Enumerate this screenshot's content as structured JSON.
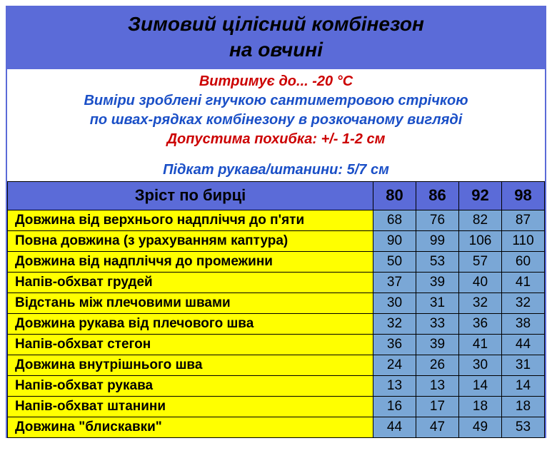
{
  "title": {
    "line1": "Зимовий  цілісний  комбінезон",
    "line2": "на  овчині"
  },
  "info": {
    "temp": {
      "text": "Витримує до... -20 °C",
      "color": "#cc0000"
    },
    "note1": {
      "text": "Виміри зроблені гнучкою сантиметровою стрічкою",
      "color": "#1a4fc7"
    },
    "note2": {
      "text": "по швах-рядках комбінезону в розкочаному вигляді",
      "color": "#1a4fc7"
    },
    "tol": {
      "text": "Допустима похибка: +/- 1-2 см",
      "color": "#cc0000"
    },
    "cuff": {
      "text": "Підкат рукава/штанини: 5/7 см",
      "color": "#1a4fc7"
    }
  },
  "colors": {
    "header_bg": "#5b6bd8",
    "label_bg": "#ffff00",
    "value_bg": "#7aa7d6",
    "border": "#000000"
  },
  "table": {
    "header_label": "Зріст по бирці",
    "sizes": [
      "80",
      "86",
      "92",
      "98"
    ],
    "rows": [
      {
        "label": "Довжина від верхнього надпліччя до п'яти",
        "values": [
          "68",
          "76",
          "82",
          "87"
        ]
      },
      {
        "label": "Повна довжина (з урахуванням каптура)",
        "values": [
          "90",
          "99",
          "106",
          "110"
        ]
      },
      {
        "label": "Довжина від надпліччя до промежини",
        "values": [
          "50",
          "53",
          "57",
          "60"
        ]
      },
      {
        "label": "Напів-обхват грудей",
        "values": [
          "37",
          "39",
          "40",
          "41"
        ]
      },
      {
        "label": "Відстань між плечовими швами",
        "values": [
          "30",
          "31",
          "32",
          "32"
        ]
      },
      {
        "label": "Довжина рукава від плечового шва",
        "values": [
          "32",
          "33",
          "36",
          "38"
        ]
      },
      {
        "label": "Напів-обхват стегон",
        "values": [
          "36",
          "39",
          "41",
          "44"
        ]
      },
      {
        "label": "Довжина внутрішнього шва",
        "values": [
          "24",
          "26",
          "30",
          "31"
        ]
      },
      {
        "label": "Напів-обхват рукава",
        "values": [
          "13",
          "13",
          "14",
          "14"
        ]
      },
      {
        "label": "Напів-обхват штанини",
        "values": [
          "16",
          "17",
          "18",
          "18"
        ]
      },
      {
        "label": "Довжина \"блискавки\"",
        "values": [
          "44",
          "47",
          "49",
          "53"
        ]
      }
    ]
  }
}
